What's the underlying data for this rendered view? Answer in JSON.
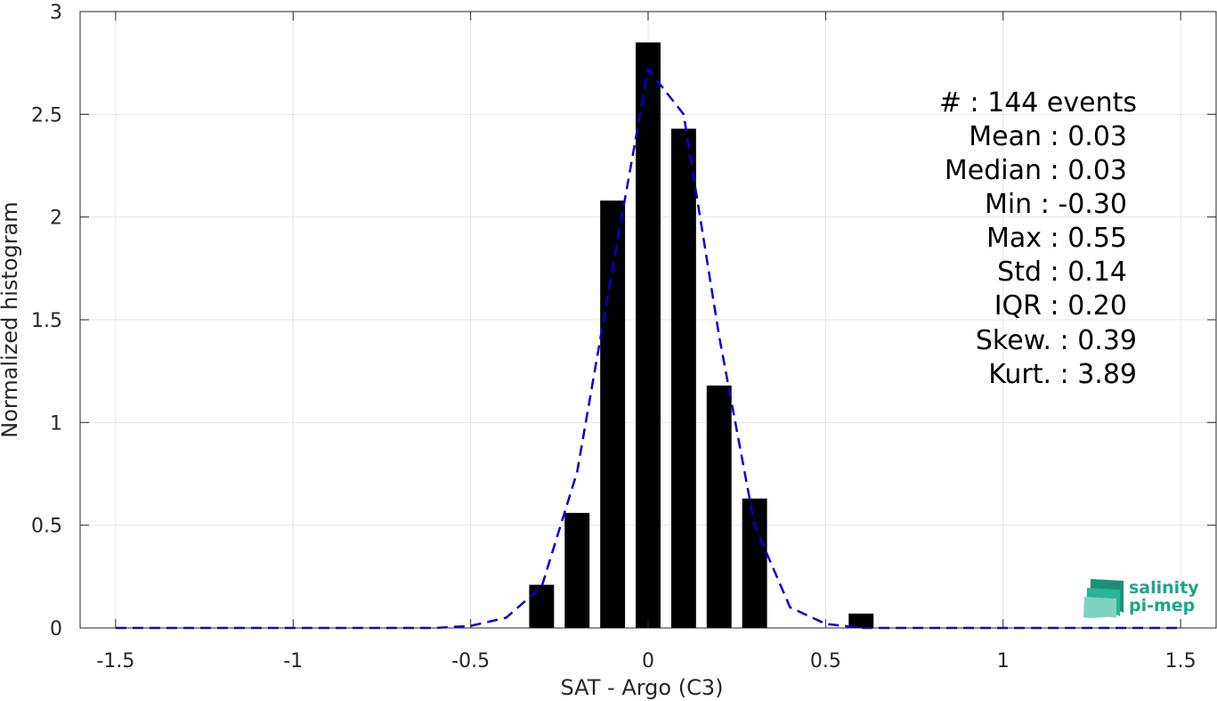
{
  "chart_data": {
    "type": "bar",
    "title": "",
    "xlabel": "SAT - Argo (C3)",
    "ylabel": "Normalized histogram",
    "xlim": [
      -1.6,
      1.6
    ],
    "ylim": [
      0,
      3
    ],
    "xticks": [
      -1.5,
      -1,
      -0.5,
      0,
      0.5,
      1,
      1.5
    ],
    "xtick_labels": [
      "-1.5",
      "-1",
      "-0.5",
      "0",
      "0.5",
      "1",
      "1.5"
    ],
    "yticks": [
      0,
      0.5,
      1,
      1.5,
      2,
      2.5,
      3
    ],
    "ytick_labels": [
      "0",
      "0.5",
      "1",
      "1.5",
      "2",
      "2.5",
      "3"
    ],
    "grid": true,
    "bar_width": 0.07,
    "series": [
      {
        "type": "bar",
        "color": "#000000",
        "x": [
          -0.3,
          -0.2,
          -0.1,
          0.0,
          0.1,
          0.2,
          0.3,
          0.6
        ],
        "values": [
          0.21,
          0.56,
          2.08,
          2.85,
          2.43,
          1.18,
          0.63,
          0.07
        ]
      },
      {
        "type": "line",
        "style": "dashed",
        "color": "#0000dd",
        "x": [
          -1.5,
          -1.4,
          -1.3,
          -1.2,
          -1.1,
          -1.0,
          -0.9,
          -0.8,
          -0.7,
          -0.6,
          -0.5,
          -0.4,
          -0.3,
          -0.2,
          -0.1,
          0.0,
          0.1,
          0.2,
          0.3,
          0.4,
          0.5,
          0.6,
          0.7,
          0.8,
          0.9,
          1.0,
          1.1,
          1.2,
          1.3,
          1.4,
          1.5
        ],
        "values": [
          0,
          0,
          0,
          0,
          0,
          0,
          0,
          0,
          0,
          0,
          0.01,
          0.05,
          0.2,
          0.76,
          1.75,
          2.72,
          2.5,
          1.42,
          0.5,
          0.1,
          0.02,
          0,
          0,
          0,
          0,
          0,
          0,
          0,
          0,
          0,
          0
        ]
      }
    ]
  },
  "stats": {
    "lines": [
      "#  : 144 events",
      "Mean : 0.03",
      "Median : 0.03",
      "Min : -0.30",
      "Max : 0.55",
      "Std : 0.14",
      "IQR : 0.20",
      "Skew. : 0.39",
      "Kurt. : 3.89"
    ]
  },
  "logo": {
    "line1": "salinity",
    "line2": "pi-mep",
    "color": "#1aa68a",
    "icon": "salinity-wave-icon"
  }
}
